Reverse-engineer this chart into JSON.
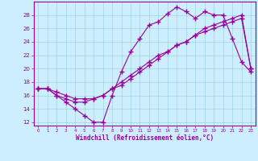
{
  "xlabel": "Windchill (Refroidissement éolien,°C)",
  "bg_color": "#cceeff",
  "line_color": "#990099",
  "xlim": [
    -0.5,
    23.5
  ],
  "ylim": [
    11.5,
    30
  ],
  "yticks": [
    12,
    14,
    16,
    18,
    20,
    22,
    24,
    26,
    28
  ],
  "xticks": [
    0,
    1,
    2,
    3,
    4,
    5,
    6,
    7,
    8,
    9,
    10,
    11,
    12,
    13,
    14,
    15,
    16,
    17,
    18,
    19,
    20,
    21,
    22,
    23
  ],
  "series1_x": [
    0,
    1,
    2,
    3,
    4,
    5,
    6,
    7,
    8,
    9,
    10,
    11,
    12,
    13,
    14,
    15,
    16,
    17,
    18,
    19,
    20,
    21,
    22,
    23
  ],
  "series1_y": [
    17,
    17,
    16,
    15,
    14,
    13,
    12,
    12,
    16,
    19.5,
    22.5,
    24.5,
    26.5,
    27,
    28.2,
    29.2,
    28.5,
    27.5,
    28.5,
    28,
    28,
    24.5,
    21,
    19.5
  ],
  "series2_x": [
    0,
    1,
    2,
    3,
    4,
    5,
    6,
    7,
    8,
    9,
    10,
    11,
    12,
    13,
    14,
    15,
    16,
    17,
    18,
    19,
    20,
    21,
    22,
    23
  ],
  "series2_y": [
    17,
    17,
    16.5,
    16,
    15.5,
    15.5,
    15.5,
    16,
    17,
    18,
    19,
    20,
    21,
    22,
    22.5,
    23.5,
    24,
    25,
    26,
    26.5,
    27,
    27.5,
    28,
    20
  ],
  "series3_x": [
    0,
    1,
    2,
    3,
    4,
    5,
    6,
    7,
    8,
    9,
    10,
    11,
    12,
    13,
    14,
    15,
    16,
    17,
    18,
    19,
    20,
    21,
    22,
    23
  ],
  "series3_y": [
    17,
    17,
    16,
    15.5,
    15,
    15,
    15.5,
    16,
    17,
    17.5,
    18.5,
    19.5,
    20.5,
    21.5,
    22.5,
    23.5,
    24,
    25,
    25.5,
    26,
    26.5,
    27,
    27.5,
    20
  ]
}
